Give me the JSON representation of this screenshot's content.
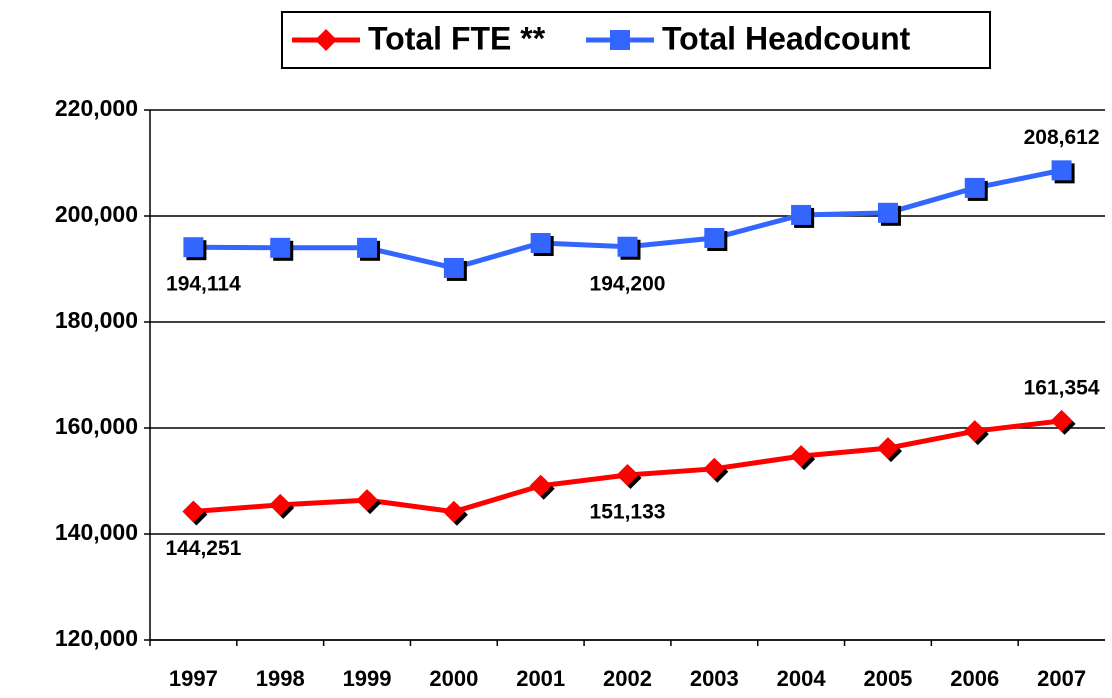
{
  "chart_data": {
    "type": "line",
    "categories": [
      "1997",
      "1998",
      "1999",
      "2000",
      "2001",
      "2002",
      "2003",
      "2004",
      "2005",
      "2006",
      "2007"
    ],
    "series": [
      {
        "name": "Total FTE **",
        "color": "#ff0000",
        "marker": "diamond",
        "values": [
          144251,
          145500,
          146400,
          144200,
          149100,
          151133,
          152300,
          154700,
          156200,
          159400,
          161354
        ],
        "value_labels": [
          "144,251",
          null,
          null,
          null,
          null,
          "151,133",
          null,
          null,
          null,
          null,
          "161,354"
        ]
      },
      {
        "name": "Total Headcount",
        "color": "#3366ff",
        "marker": "square",
        "values": [
          194114,
          194000,
          194000,
          190200,
          194900,
          194200,
          195850,
          200200,
          200600,
          205300,
          208612
        ],
        "value_labels": [
          "194,114",
          null,
          null,
          null,
          null,
          "194,200",
          null,
          null,
          null,
          null,
          "208,612"
        ]
      }
    ],
    "ylim": [
      120000,
      220000
    ],
    "yticks": [
      {
        "value": 120000,
        "label": "120,000"
      },
      {
        "value": 140000,
        "label": "140,000"
      },
      {
        "value": 160000,
        "label": "160,000"
      },
      {
        "value": 180000,
        "label": "180,000"
      },
      {
        "value": 200000,
        "label": "200,000"
      },
      {
        "value": 220000,
        "label": "220,000"
      }
    ],
    "grid": true,
    "legend": "top"
  }
}
